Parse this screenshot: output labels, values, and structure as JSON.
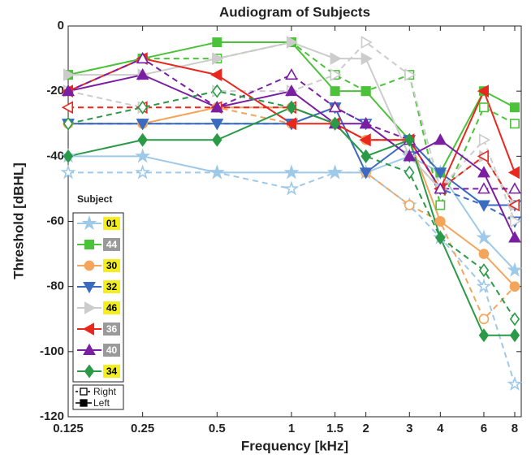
{
  "chart_data": {
    "type": "line",
    "title": "Audiogram of Subjects",
    "x_label": "Frequency [kHz]",
    "y_label": "Threshold [dBHL]",
    "x_scale": "log",
    "x": [
      0.125,
      0.25,
      0.5,
      1,
      1.5,
      2,
      3,
      4,
      6,
      8
    ],
    "xlim": [
      0.125,
      8.5
    ],
    "xticks": [
      0.125,
      0.25,
      0.5,
      1,
      1.5,
      2,
      3,
      4,
      6,
      8
    ],
    "ylim": [
      -120,
      0
    ],
    "yticks": [
      0,
      -20,
      -40,
      -60,
      -80,
      -100,
      -120
    ],
    "legend_title": "Subject",
    "sides": [
      {
        "name": "Right",
        "key": "right",
        "dashed": true,
        "filled": false
      },
      {
        "name": "Left",
        "key": "left",
        "dashed": false,
        "filled": true
      }
    ],
    "series": [
      {
        "name": "01",
        "color": "#9fc9e8",
        "marker": "star",
        "label_bg": "#f4ef1a",
        "label_fg": "#000000",
        "right": [
          -45,
          -45,
          -45,
          -50,
          -45,
          -45,
          -55,
          -65,
          -80,
          -110
        ],
        "left": [
          -40,
          -40,
          -45,
          -45,
          -45,
          -45,
          -40,
          -45,
          -65,
          -75
        ]
      },
      {
        "name": "44",
        "color": "#4cc23a",
        "marker": "square",
        "label_bg": "#9a9a9a",
        "label_fg": "#ffffff",
        "right": [
          -15,
          -10,
          -10,
          -5,
          -15,
          -20,
          -15,
          -55,
          -25,
          -30
        ],
        "left": [
          -15,
          -10,
          -5,
          -5,
          -20,
          -20,
          -35,
          -45,
          -20,
          -25
        ]
      },
      {
        "name": "30",
        "color": "#f5a55a",
        "marker": "circle",
        "label_bg": "#f4ef1a",
        "label_fg": "#000000",
        "right": [
          -30,
          -30,
          -25,
          -30,
          -25,
          -45,
          -55,
          -60,
          -90,
          -80
        ],
        "left": [
          -30,
          -30,
          -25,
          -25,
          -30,
          -35,
          -35,
          -60,
          -70,
          -80
        ]
      },
      {
        "name": "32",
        "color": "#3a6bc0",
        "marker": "tri-down",
        "label_bg": "#f4ef1a",
        "label_fg": "#000000",
        "right": [
          -30,
          -30,
          -30,
          -30,
          -25,
          -30,
          -40,
          -50,
          -55,
          -60
        ],
        "left": [
          -30,
          -30,
          -30,
          -30,
          -25,
          -45,
          -35,
          -45,
          -55,
          -55
        ]
      },
      {
        "name": "46",
        "color": "#cccccc",
        "marker": "tri-right",
        "label_bg": "#f4ef1a",
        "label_fg": "#000000",
        "right": [
          -20,
          -25,
          -20,
          -20,
          -15,
          -5,
          -15,
          -50,
          -35,
          -60
        ],
        "left": [
          -15,
          -15,
          -10,
          -5,
          -10,
          -10,
          -40,
          -50,
          -40,
          -55
        ]
      },
      {
        "name": "36",
        "color": "#e8281f",
        "marker": "tri-left",
        "label_bg": "#9a9a9a",
        "label_fg": "#ffffff",
        "right": [
          -25,
          -25,
          -25,
          -25,
          -30,
          -35,
          -35,
          -50,
          -40,
          -55
        ],
        "left": [
          -20,
          -10,
          -15,
          -30,
          -30,
          -35,
          -35,
          -50,
          -20,
          -45
        ]
      },
      {
        "name": "40",
        "color": "#7b1fa2",
        "marker": "tri-up",
        "label_bg": "#9a9a9a",
        "label_fg": "#ffffff",
        "right": [
          -20,
          -10,
          -25,
          -15,
          -25,
          -30,
          -35,
          -50,
          -50,
          -50
        ],
        "left": [
          -20,
          -15,
          -25,
          -20,
          -30,
          -30,
          -40,
          -35,
          -45,
          -65
        ]
      },
      {
        "name": "34",
        "color": "#2a9a48",
        "marker": "diamond",
        "label_bg": "#f4ef1a",
        "label_fg": "#000000",
        "right": [
          -30,
          -25,
          -20,
          -25,
          -30,
          -40,
          -45,
          -65,
          -75,
          -90
        ],
        "left": [
          -40,
          -35,
          -35,
          -25,
          -30,
          -40,
          -35,
          -65,
          -95,
          -95
        ]
      }
    ]
  }
}
